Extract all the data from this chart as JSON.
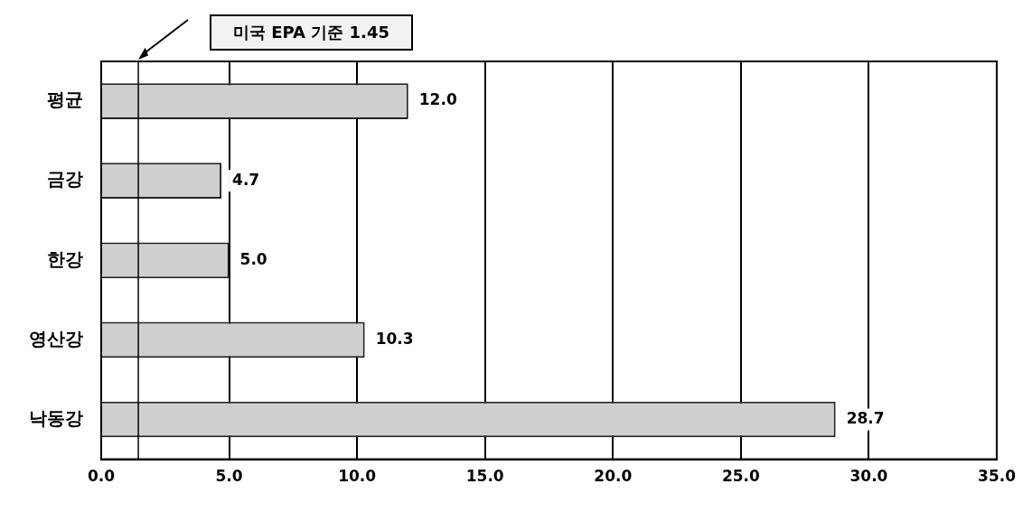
{
  "chart_data": {
    "type": "bar",
    "orientation": "horizontal",
    "categories": [
      "평균",
      "금강",
      "한강",
      "영산강",
      "낙동강"
    ],
    "values": [
      12.0,
      4.7,
      5.0,
      10.3,
      28.7
    ],
    "value_labels": [
      "12.0",
      "4.7",
      "5.0",
      "10.3",
      "28.7"
    ],
    "color": "#cfcfcf",
    "xlim": [
      0,
      35
    ],
    "xticks": [
      {
        "value": 0,
        "label": "0.0"
      },
      {
        "value": 5,
        "label": "5.0"
      },
      {
        "value": 10,
        "label": "10.0"
      },
      {
        "value": 15,
        "label": "15.0"
      },
      {
        "value": 20,
        "label": "20.0"
      },
      {
        "value": 25,
        "label": "25.0"
      },
      {
        "value": 30,
        "label": "30.0"
      },
      {
        "value": 35,
        "label": "35.0"
      }
    ],
    "grid": "x",
    "legend": false,
    "ref_lines": [
      {
        "axis": "x",
        "value": 1.45,
        "label": "미국 EPA 기준 1.45",
        "color": "#000000"
      }
    ]
  }
}
